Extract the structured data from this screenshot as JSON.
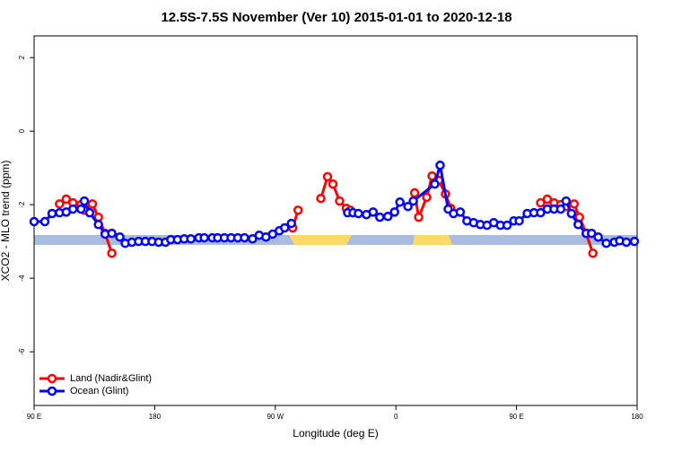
{
  "chart_data": {
    "type": "line",
    "title": "12.5S-7.5S November (Ver 10)   2015-01-01 to 2020-12-18",
    "x_label": "Longitude (deg E)",
    "y_label": "XCO2 - MLO trend (ppm)",
    "xlim": [
      90,
      540
    ],
    "xticks": [
      {
        "value": 90,
        "label": "90 E"
      },
      {
        "value": 180,
        "label": "180"
      },
      {
        "value": 270,
        "label": "90 W"
      },
      {
        "value": 360,
        "label": "0"
      },
      {
        "value": 450,
        "label": "90 E"
      },
      {
        "value": 540,
        "label": "180"
      }
    ],
    "ylim": [
      -7.46,
      2.59
    ],
    "yticks": [
      2,
      0,
      -2,
      -4,
      -6
    ],
    "legend": "bottom-left",
    "series": [
      {
        "name": "Land (Nadir&Glint)",
        "color": "#ff0000",
        "x": [
          109,
          114,
          119,
          125,
          127.5,
          133.5,
          138,
          143,
          148,
          null,
          283,
          287,
          null,
          304,
          309,
          313,
          318,
          323,
          326,
          null,
          374,
          377,
          383,
          387,
          392,
          397,
          401,
          null,
          468,
          473,
          478,
          483,
          487,
          493,
          497,
          502,
          507
        ],
        "values": [
          -1.98,
          -1.85,
          -1.95,
          -2.0,
          -2.15,
          -1.98,
          -2.34,
          -2.78,
          -3.32,
          null,
          -2.63,
          -2.15,
          null,
          -1.83,
          -1.24,
          -1.44,
          -1.9,
          -2.1,
          -2.15,
          null,
          -1.68,
          -2.34,
          -1.8,
          -1.22,
          -1.34,
          -1.71,
          -2.1,
          null,
          -1.95,
          -1.85,
          -1.95,
          -2.0,
          -2.05,
          -1.98,
          -2.34,
          -2.78,
          -3.32
        ]
      },
      {
        "name": "Ocean (Glint)",
        "color": "#0000ff",
        "x": [
          90,
          98,
          103.4,
          109,
          114,
          119,
          125,
          127.5,
          131.5,
          138,
          143,
          148,
          154,
          158,
          163,
          168,
          173,
          178,
          183,
          188,
          192,
          197,
          202,
          207,
          213,
          217,
          223,
          227,
          232,
          237,
          242,
          247,
          253,
          258,
          263,
          268,
          273,
          277,
          282,
          null,
          324,
          328,
          332,
          338,
          343,
          348,
          354,
          359,
          363,
          369,
          373,
          389,
          393,
          399,
          403,
          408,
          413,
          418,
          423,
          428,
          433,
          438,
          443,
          448,
          452,
          458,
          463,
          468,
          473,
          478,
          483,
          487,
          491,
          496,
          502,
          506,
          511,
          517,
          523,
          527,
          532,
          538
        ],
        "values": [
          -2.46,
          -2.46,
          -2.24,
          -2.22,
          -2.2,
          -2.12,
          -2.12,
          -1.9,
          -2.22,
          -2.54,
          -2.8,
          -2.78,
          -2.88,
          -3.05,
          -3.02,
          -3.0,
          -3.0,
          -3.0,
          -3.02,
          -3.02,
          -2.95,
          -2.95,
          -2.93,
          -2.93,
          -2.9,
          -2.9,
          -2.9,
          -2.9,
          -2.9,
          -2.9,
          -2.9,
          -2.9,
          -2.93,
          -2.83,
          -2.88,
          -2.8,
          -2.71,
          -2.63,
          -2.51,
          null,
          -2.22,
          -2.22,
          -2.24,
          -2.27,
          -2.2,
          -2.34,
          -2.32,
          -2.2,
          -1.93,
          -2.05,
          -1.9,
          -1.44,
          -0.93,
          -2.12,
          -2.24,
          -2.2,
          -2.44,
          -2.49,
          -2.54,
          -2.56,
          -2.49,
          -2.56,
          -2.56,
          -2.44,
          -2.44,
          -2.24,
          -2.22,
          -2.22,
          -2.12,
          -2.12,
          -2.12,
          -1.9,
          -2.24,
          -2.54,
          -2.78,
          -2.78,
          -2.88,
          -3.05,
          -3.02,
          -2.98,
          -3.02,
          -3.0
        ]
      }
    ]
  }
}
